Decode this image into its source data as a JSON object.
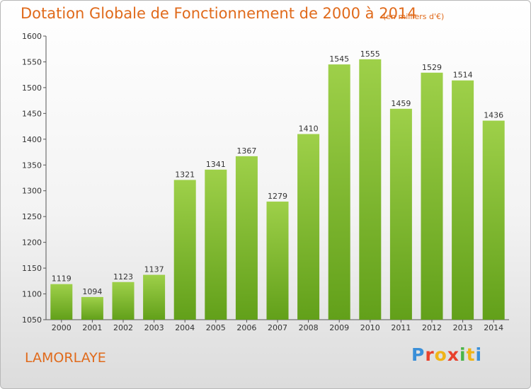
{
  "header": {
    "title": "Dotation Globale de Fonctionnement de 2000 à 2014",
    "unit": "(en milliers d'€)"
  },
  "footer": {
    "town": "LAMORLAYE",
    "logo": "Proxiti",
    "logo_colors": [
      "#3a8fd8",
      "#e8402c",
      "#f0b418",
      "#e8402c",
      "#4bb548",
      "#f0b418",
      "#3a8fd8"
    ]
  },
  "chart_data": {
    "type": "bar",
    "title": "Dotation Globale de Fonctionnement de 2000 à 2014",
    "subtitle": "(en milliers d'€)",
    "categories": [
      "2000",
      "2001",
      "2002",
      "2003",
      "2004",
      "2005",
      "2006",
      "2007",
      "2008",
      "2009",
      "2010",
      "2011",
      "2012",
      "2013",
      "2014"
    ],
    "values": [
      1119,
      1094,
      1123,
      1137,
      1321,
      1341,
      1367,
      1279,
      1410,
      1545,
      1555,
      1459,
      1529,
      1514,
      1436
    ],
    "yticks": [
      1050,
      1100,
      1150,
      1200,
      1250,
      1300,
      1350,
      1400,
      1450,
      1500,
      1550,
      1600
    ],
    "ylim": [
      1050,
      1600
    ],
    "grid": false,
    "legend": "none",
    "bar_color": "#7dbb2e"
  }
}
